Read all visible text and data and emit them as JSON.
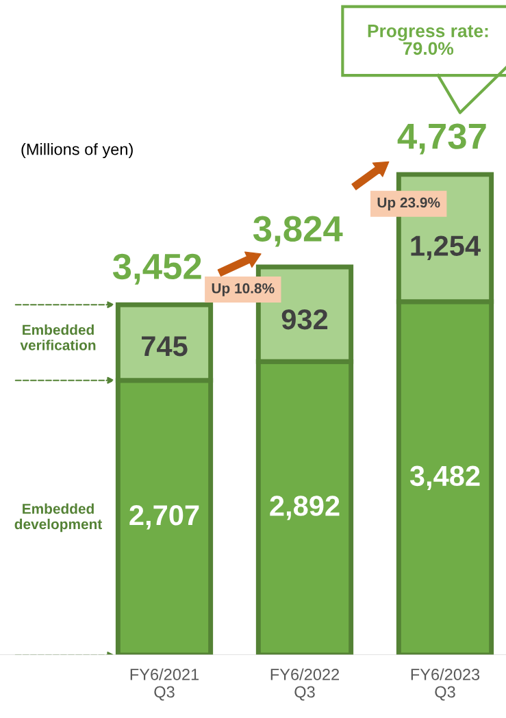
{
  "chart_data": {
    "type": "bar",
    "stacked": true,
    "categories": [
      "FY6/2021\nQ3",
      "FY6/2022\nQ3",
      "FY6/2023\nQ3"
    ],
    "series": [
      {
        "name": "Embedded\ndevelopment",
        "color": "#70ad47",
        "values": [
          2707,
          2892,
          3482
        ],
        "value_labels": [
          "2,707",
          "2,892",
          "3,482"
        ]
      },
      {
        "name": "Embedded\nverification",
        "color": "#a9d18e",
        "values": [
          745,
          932,
          1254
        ],
        "value_labels": [
          "745",
          "932",
          "1,254"
        ]
      }
    ],
    "totals": [
      "3,452",
      "3,824",
      "4,737"
    ],
    "annotations": [
      "(Millions of yen)",
      "Up 10.8%",
      "Up 23.9%",
      "Progress rate:\n79.0%"
    ],
    "grid": false,
    "legend": false
  }
}
